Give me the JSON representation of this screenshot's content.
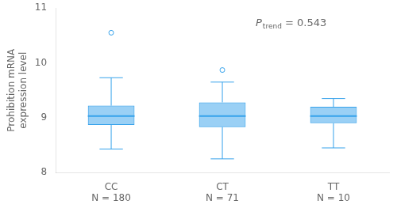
{
  "chart_data": {
    "type": "box",
    "categories": [
      [
        "CC",
        "N = 180"
      ],
      [
        "CT",
        "N = 71"
      ],
      [
        "TT",
        "N = 10"
      ]
    ],
    "values": [
      {
        "whislo": 8.43,
        "q1": 8.87,
        "med": 9.03,
        "q3": 9.22,
        "whishi": 9.73,
        "fliers": [
          10.55
        ]
      },
      {
        "whislo": 8.25,
        "q1": 8.83,
        "med": 9.03,
        "q3": 9.28,
        "whishi": 9.65,
        "fliers": [
          9.87
        ]
      },
      {
        "whislo": 8.45,
        "q1": 8.9,
        "med": 9.03,
        "q3": 9.2,
        "whishi": 9.35,
        "fliers": []
      }
    ],
    "ylabel": [
      "Prohibition mRNA",
      "expression level"
    ],
    "annotation": {
      "text": "P",
      "subscript": "trend",
      "suffix": " = 0.543"
    },
    "ylim": [
      8.0,
      11.0
    ],
    "yticks": [
      8,
      9,
      10,
      11
    ],
    "grid": false
  }
}
